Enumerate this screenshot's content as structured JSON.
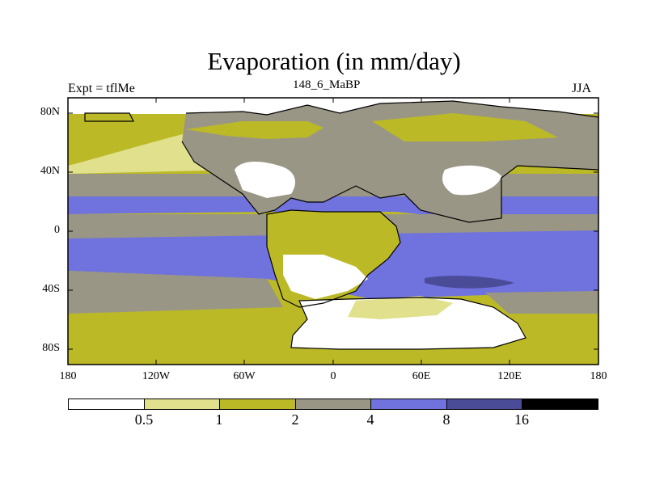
{
  "title": "Evaporation (in mm/day)",
  "subtitle_left": "Expt = tflMe",
  "subtitle_center": "148_6_MaBP",
  "subtitle_right": "JJA",
  "y_ticks": [
    "80N",
    "40N",
    "0",
    "40S",
    "80S"
  ],
  "x_ticks": [
    "180",
    "120W",
    "60W",
    "0",
    "60E",
    "120E",
    "180"
  ],
  "colorbar": {
    "labels": [
      "0.5",
      "1",
      "2",
      "4",
      "8",
      "16"
    ],
    "colors": [
      "#ffffff",
      "#e1e08c",
      "#bcb927",
      "#9a9685",
      "#7072de",
      "#4b4c98",
      "#000000"
    ]
  },
  "land_color": "#9a9685"
}
